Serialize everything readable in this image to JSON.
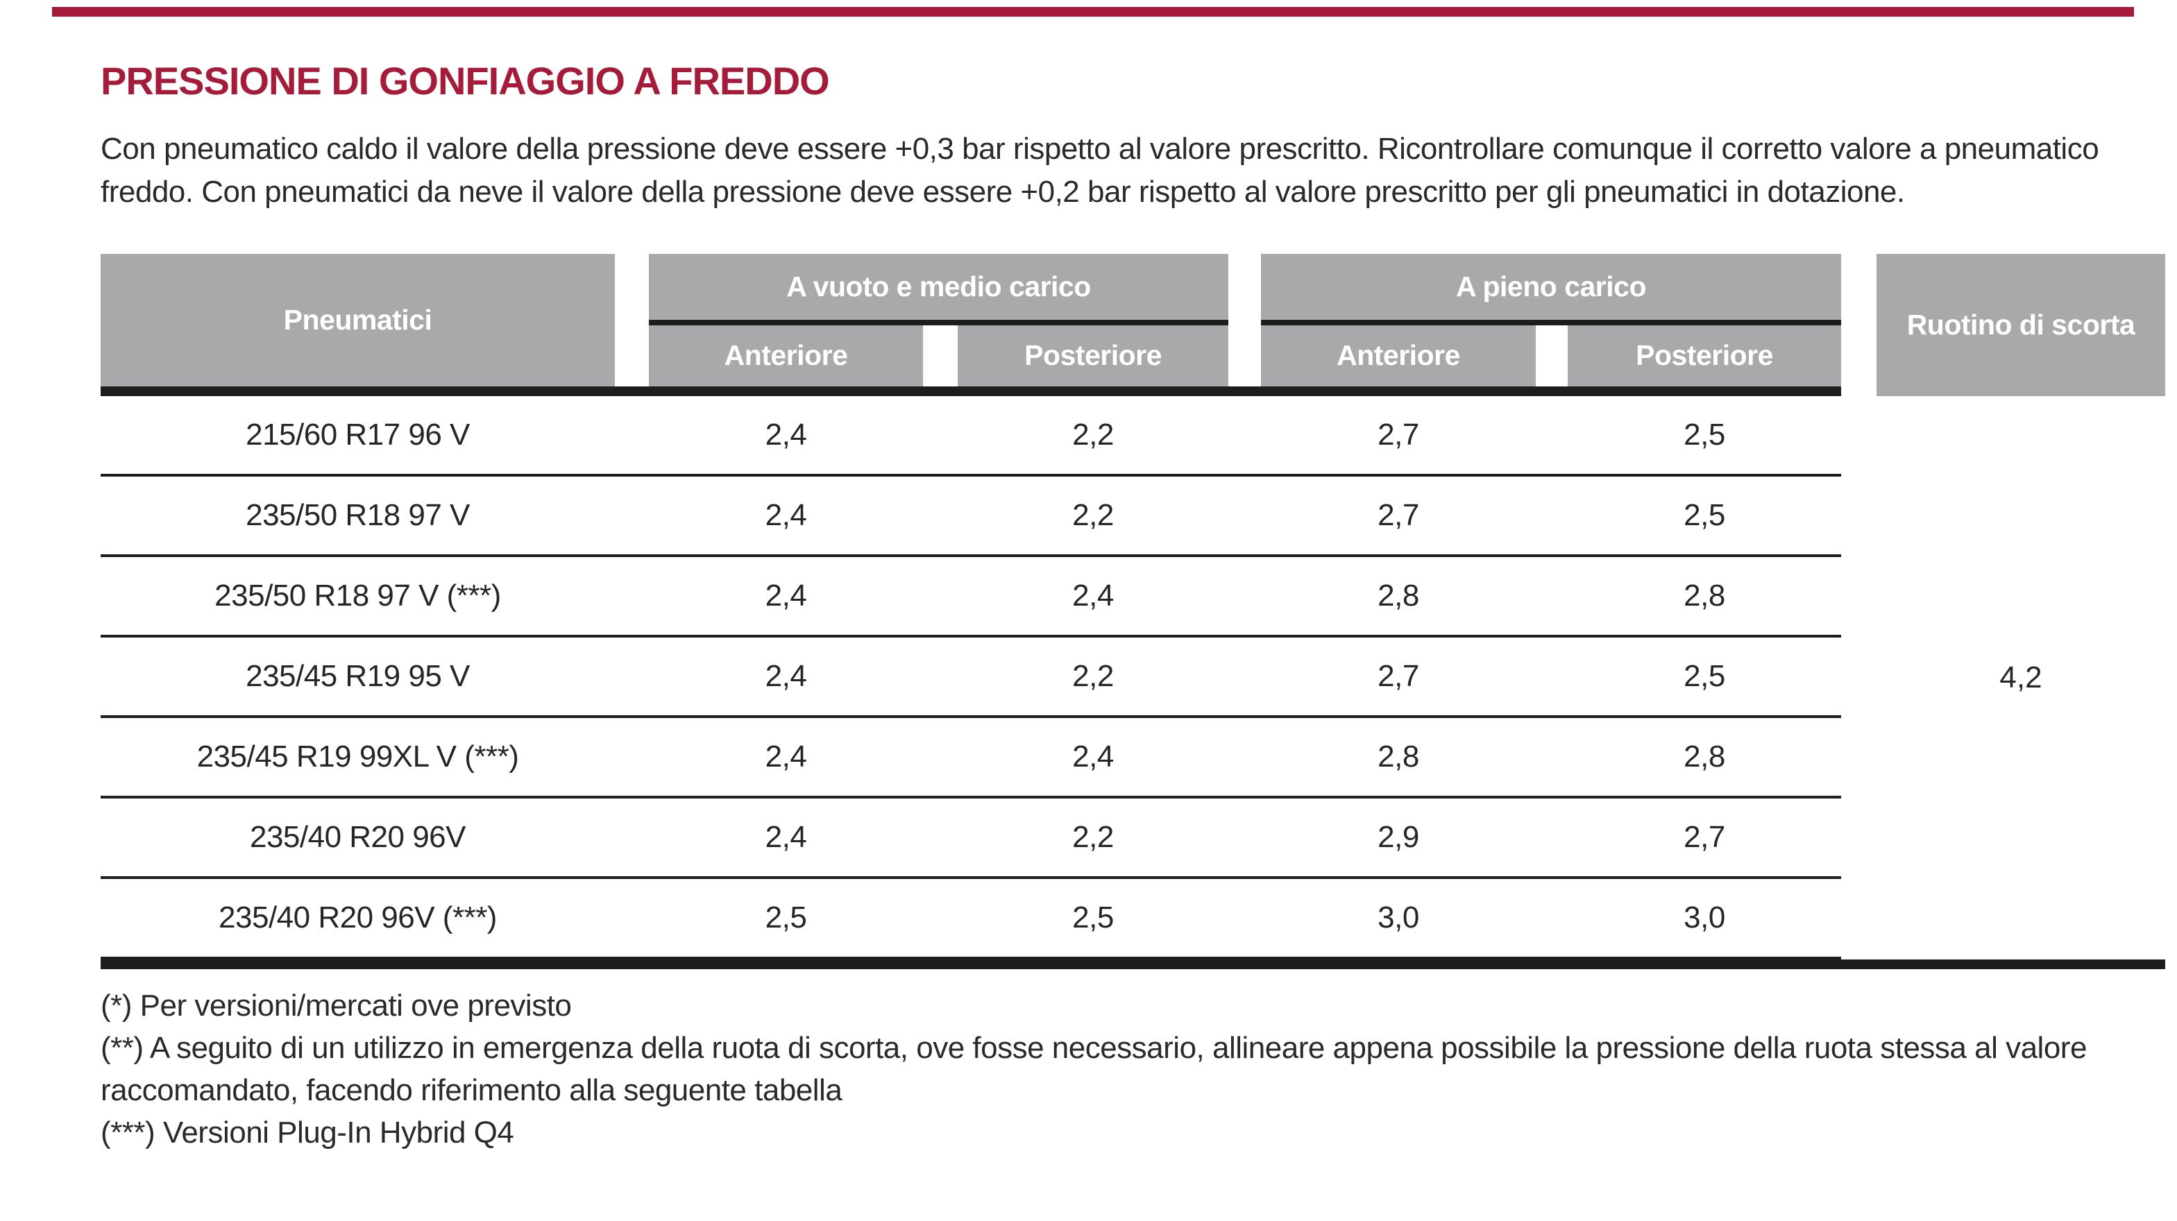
{
  "page": {
    "accent_color": "#a51c3a",
    "header_gray": "#a8a9ab",
    "line_color": "#1d1d1b",
    "title": "PRESSIONE DI GONFIAGGIO A FREDDO",
    "intro": "Con pneumatico caldo il valore della pressione deve essere +0,3 bar rispetto al valore prescritto. Ricontrollare comunque il corretto valore a pneumatico freddo. Con pneumatici da neve il valore della pressione deve essere +0,2 bar rispetto al valore prescritto per gli pneumatici in dotazione."
  },
  "table": {
    "col_pneumatici": "Pneumatici",
    "group_mid_load": "A vuoto e medio carico",
    "group_full_load": "A pieno carico",
    "sub_front_1": "Anteriore",
    "sub_rear_1": "Posteriore",
    "sub_front_2": "Anteriore",
    "sub_rear_2": "Posteriore",
    "col_spare": "Ruotino di scorta",
    "spare_value": "4,2",
    "rows": [
      {
        "tyre": "215/60 R17 96 V",
        "mid_front": "2,4",
        "mid_rear": "2,2",
        "full_front": "2,7",
        "full_rear": "2,5"
      },
      {
        "tyre": "235/50 R18 97 V",
        "mid_front": "2,4",
        "mid_rear": "2,2",
        "full_front": "2,7",
        "full_rear": "2,5"
      },
      {
        "tyre": "235/50 R18 97 V (***)",
        "mid_front": "2,4",
        "mid_rear": "2,4",
        "full_front": "2,8",
        "full_rear": "2,8"
      },
      {
        "tyre": "235/45 R19 95 V",
        "mid_front": "2,4",
        "mid_rear": "2,2",
        "full_front": "2,7",
        "full_rear": "2,5"
      },
      {
        "tyre": "235/45 R19 99XL V (***)",
        "mid_front": "2,4",
        "mid_rear": "2,4",
        "full_front": "2,8",
        "full_rear": "2,8"
      },
      {
        "tyre": "235/40 R20 96V",
        "mid_front": "2,4",
        "mid_rear": "2,2",
        "full_front": "2,9",
        "full_rear": "2,7"
      },
      {
        "tyre": "235/40 R20 96V (***)",
        "mid_front": "2,5",
        "mid_rear": "2,5",
        "full_front": "3,0",
        "full_rear": "3,0"
      }
    ]
  },
  "footnotes": [
    "(*) Per versioni/mercati ove previsto",
    "(**) A seguito di un utilizzo in emergenza della ruota di scorta, ove fosse necessario, allineare appena possibile la pressione della ruota stessa al valore raccomandato, facendo riferimento alla seguente tabella",
    "(***) Versioni Plug-In Hybrid Q4"
  ]
}
